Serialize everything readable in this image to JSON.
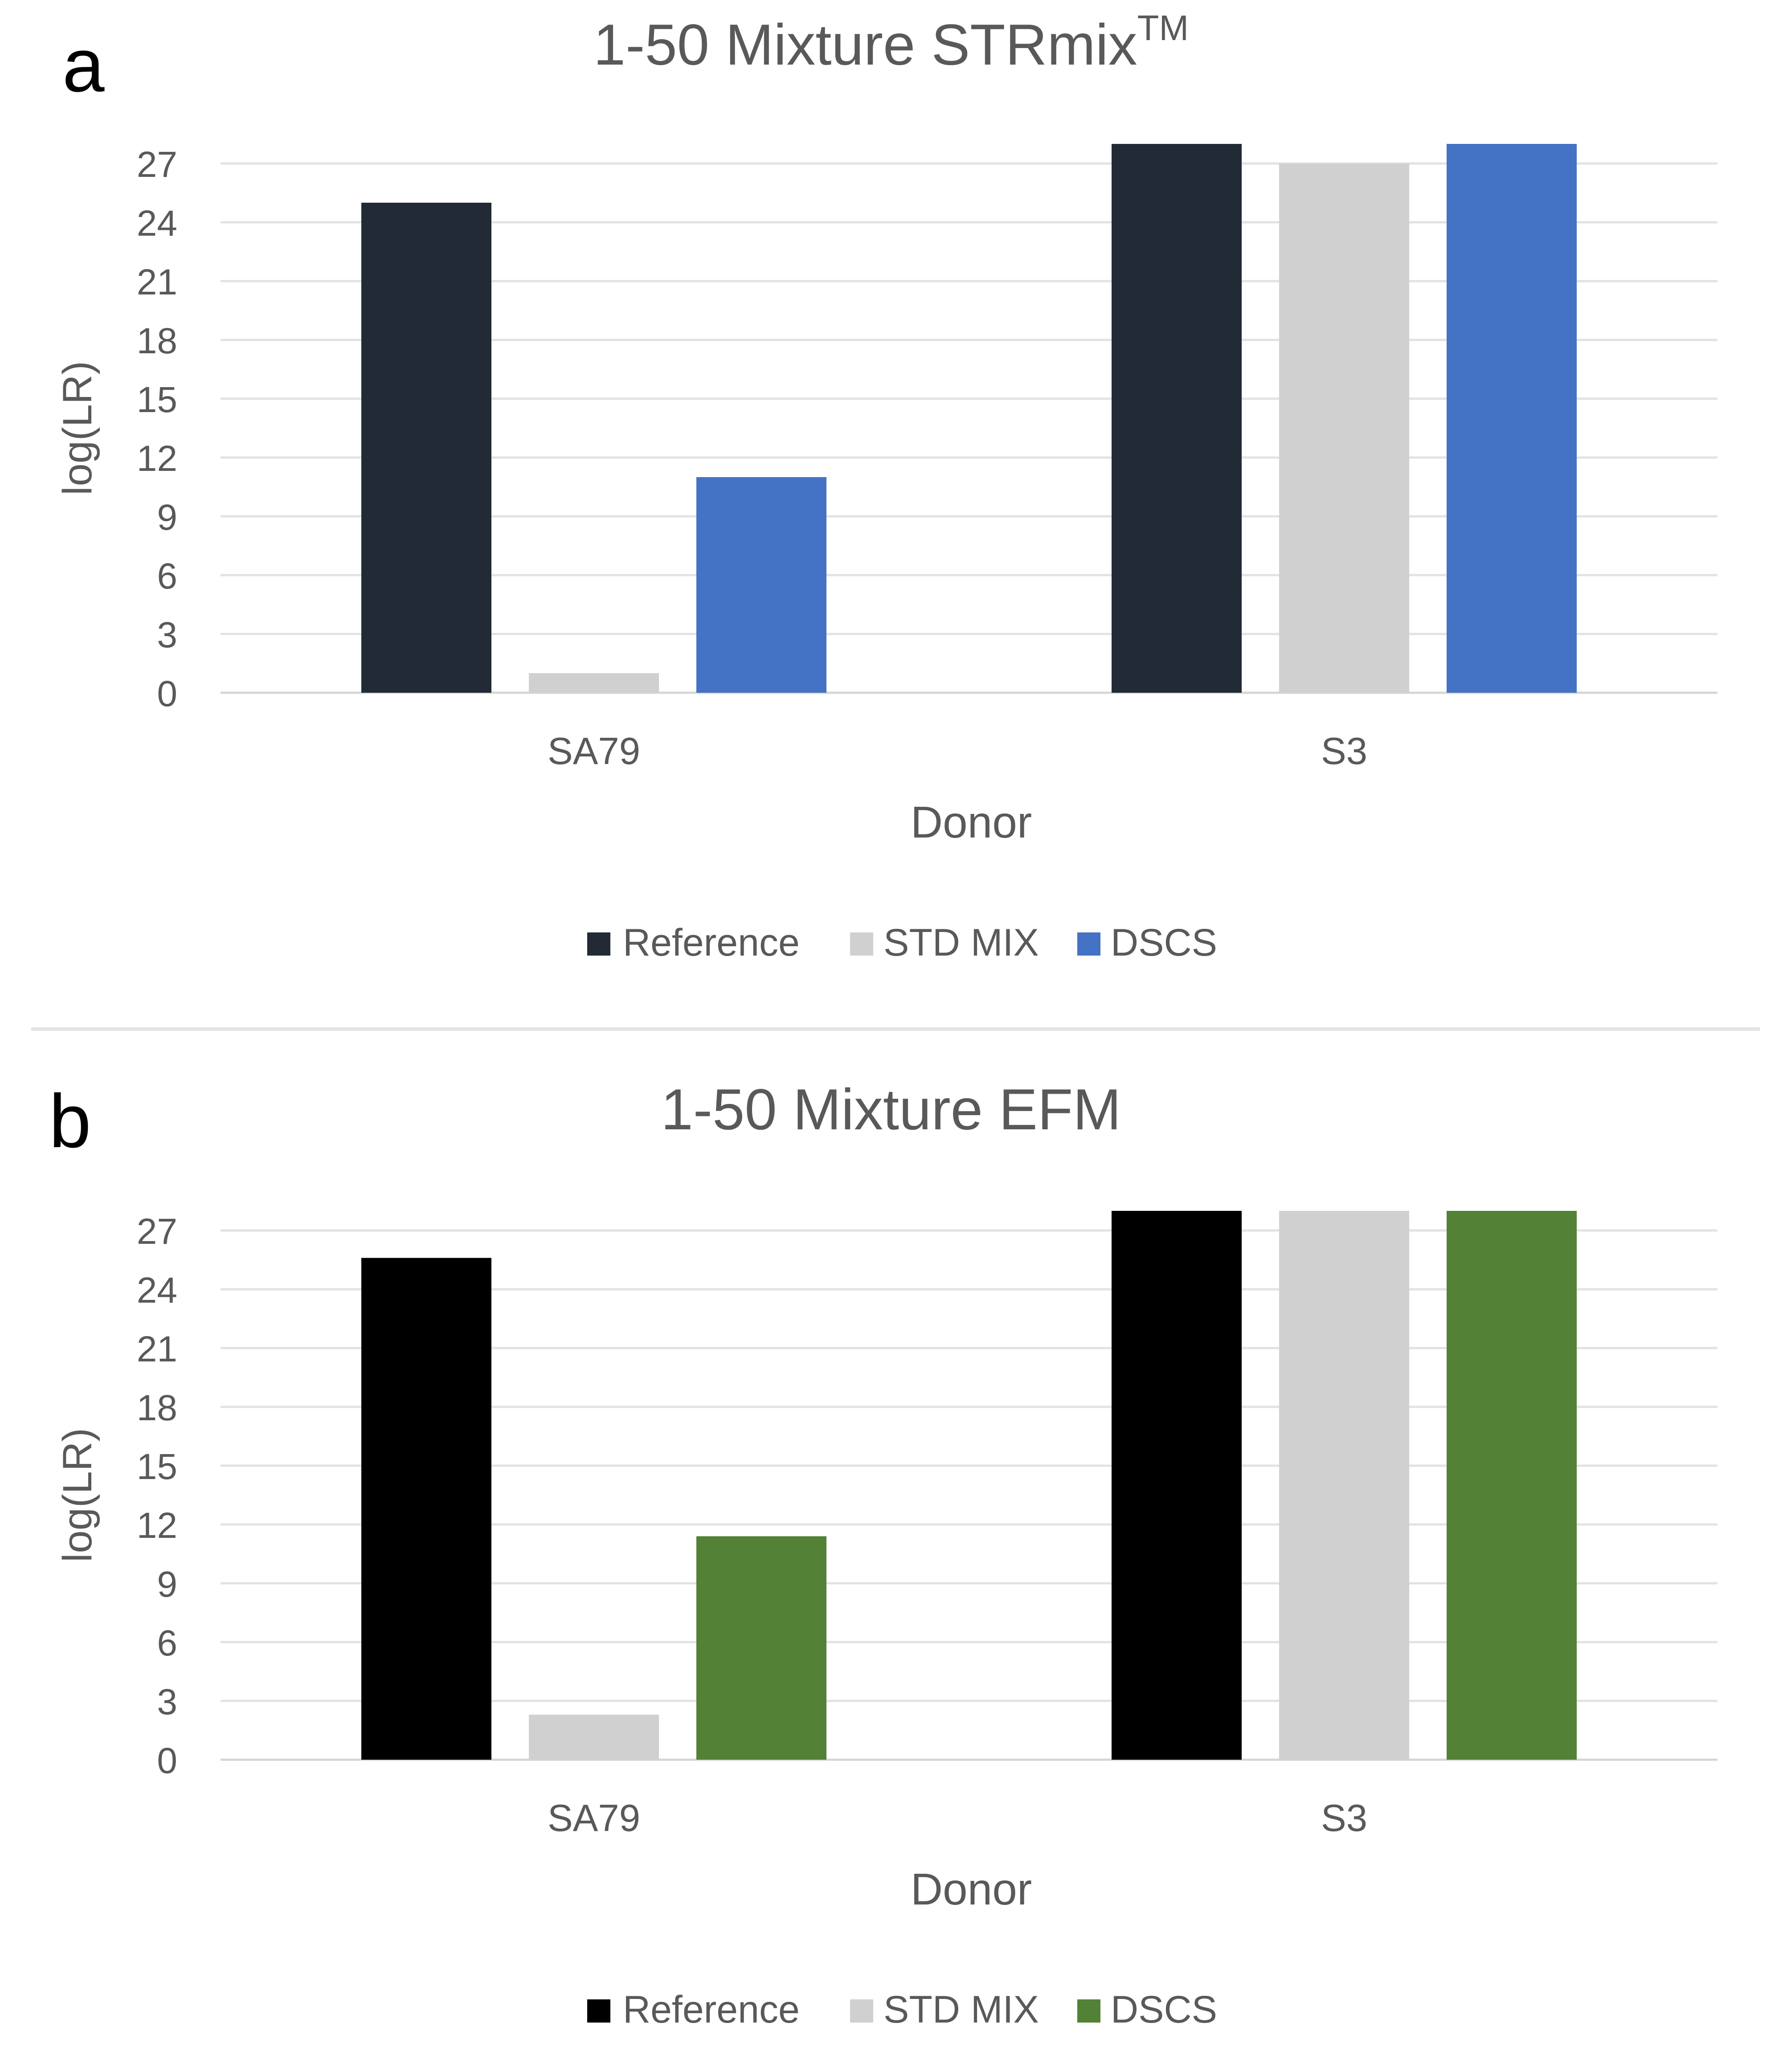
{
  "panels": [
    {
      "letter": "a",
      "title": "1-50 Mixture STRmix",
      "title_sup": "TM",
      "chart_data": {
        "type": "bar",
        "title": "1-50 Mixture STRmixTM",
        "categories": [
          "SA79",
          "S3"
        ],
        "series": [
          {
            "name": "Reference",
            "color": "#222a35",
            "values": [
              25,
              28
            ]
          },
          {
            "name": "STD MIX",
            "color": "#d0d0d0",
            "values": [
              1,
              27
            ]
          },
          {
            "name": "DSCS",
            "color": "#4472c4",
            "values": [
              11,
              28
            ]
          }
        ],
        "xlabel": "Donor",
        "ylabel": "log(LR)",
        "yticks": [
          0,
          3,
          6,
          9,
          12,
          15,
          18,
          21,
          24,
          27
        ],
        "ylim": [
          0,
          28
        ],
        "grid": true,
        "legend": "bottom"
      }
    },
    {
      "letter": "b",
      "title": "1-50 Mixture EFM",
      "title_sup": "",
      "chart_data": {
        "type": "bar",
        "title": "1-50 Mixture EFM",
        "categories": [
          "SA79",
          "S3"
        ],
        "series": [
          {
            "name": "Reference",
            "color": "#000000",
            "values": [
              25.6,
              28
            ]
          },
          {
            "name": "STD MIX",
            "color": "#d0d0d0",
            "values": [
              2.3,
              28
            ]
          },
          {
            "name": "DSCS",
            "color": "#538135",
            "values": [
              11.4,
              28
            ]
          }
        ],
        "xlabel": "Donor",
        "ylabel": "log(LR)",
        "yticks": [
          0,
          3,
          6,
          9,
          12,
          15,
          18,
          21,
          24,
          27
        ],
        "ylim": [
          0,
          28
        ],
        "grid": true,
        "legend": "bottom"
      }
    }
  ]
}
